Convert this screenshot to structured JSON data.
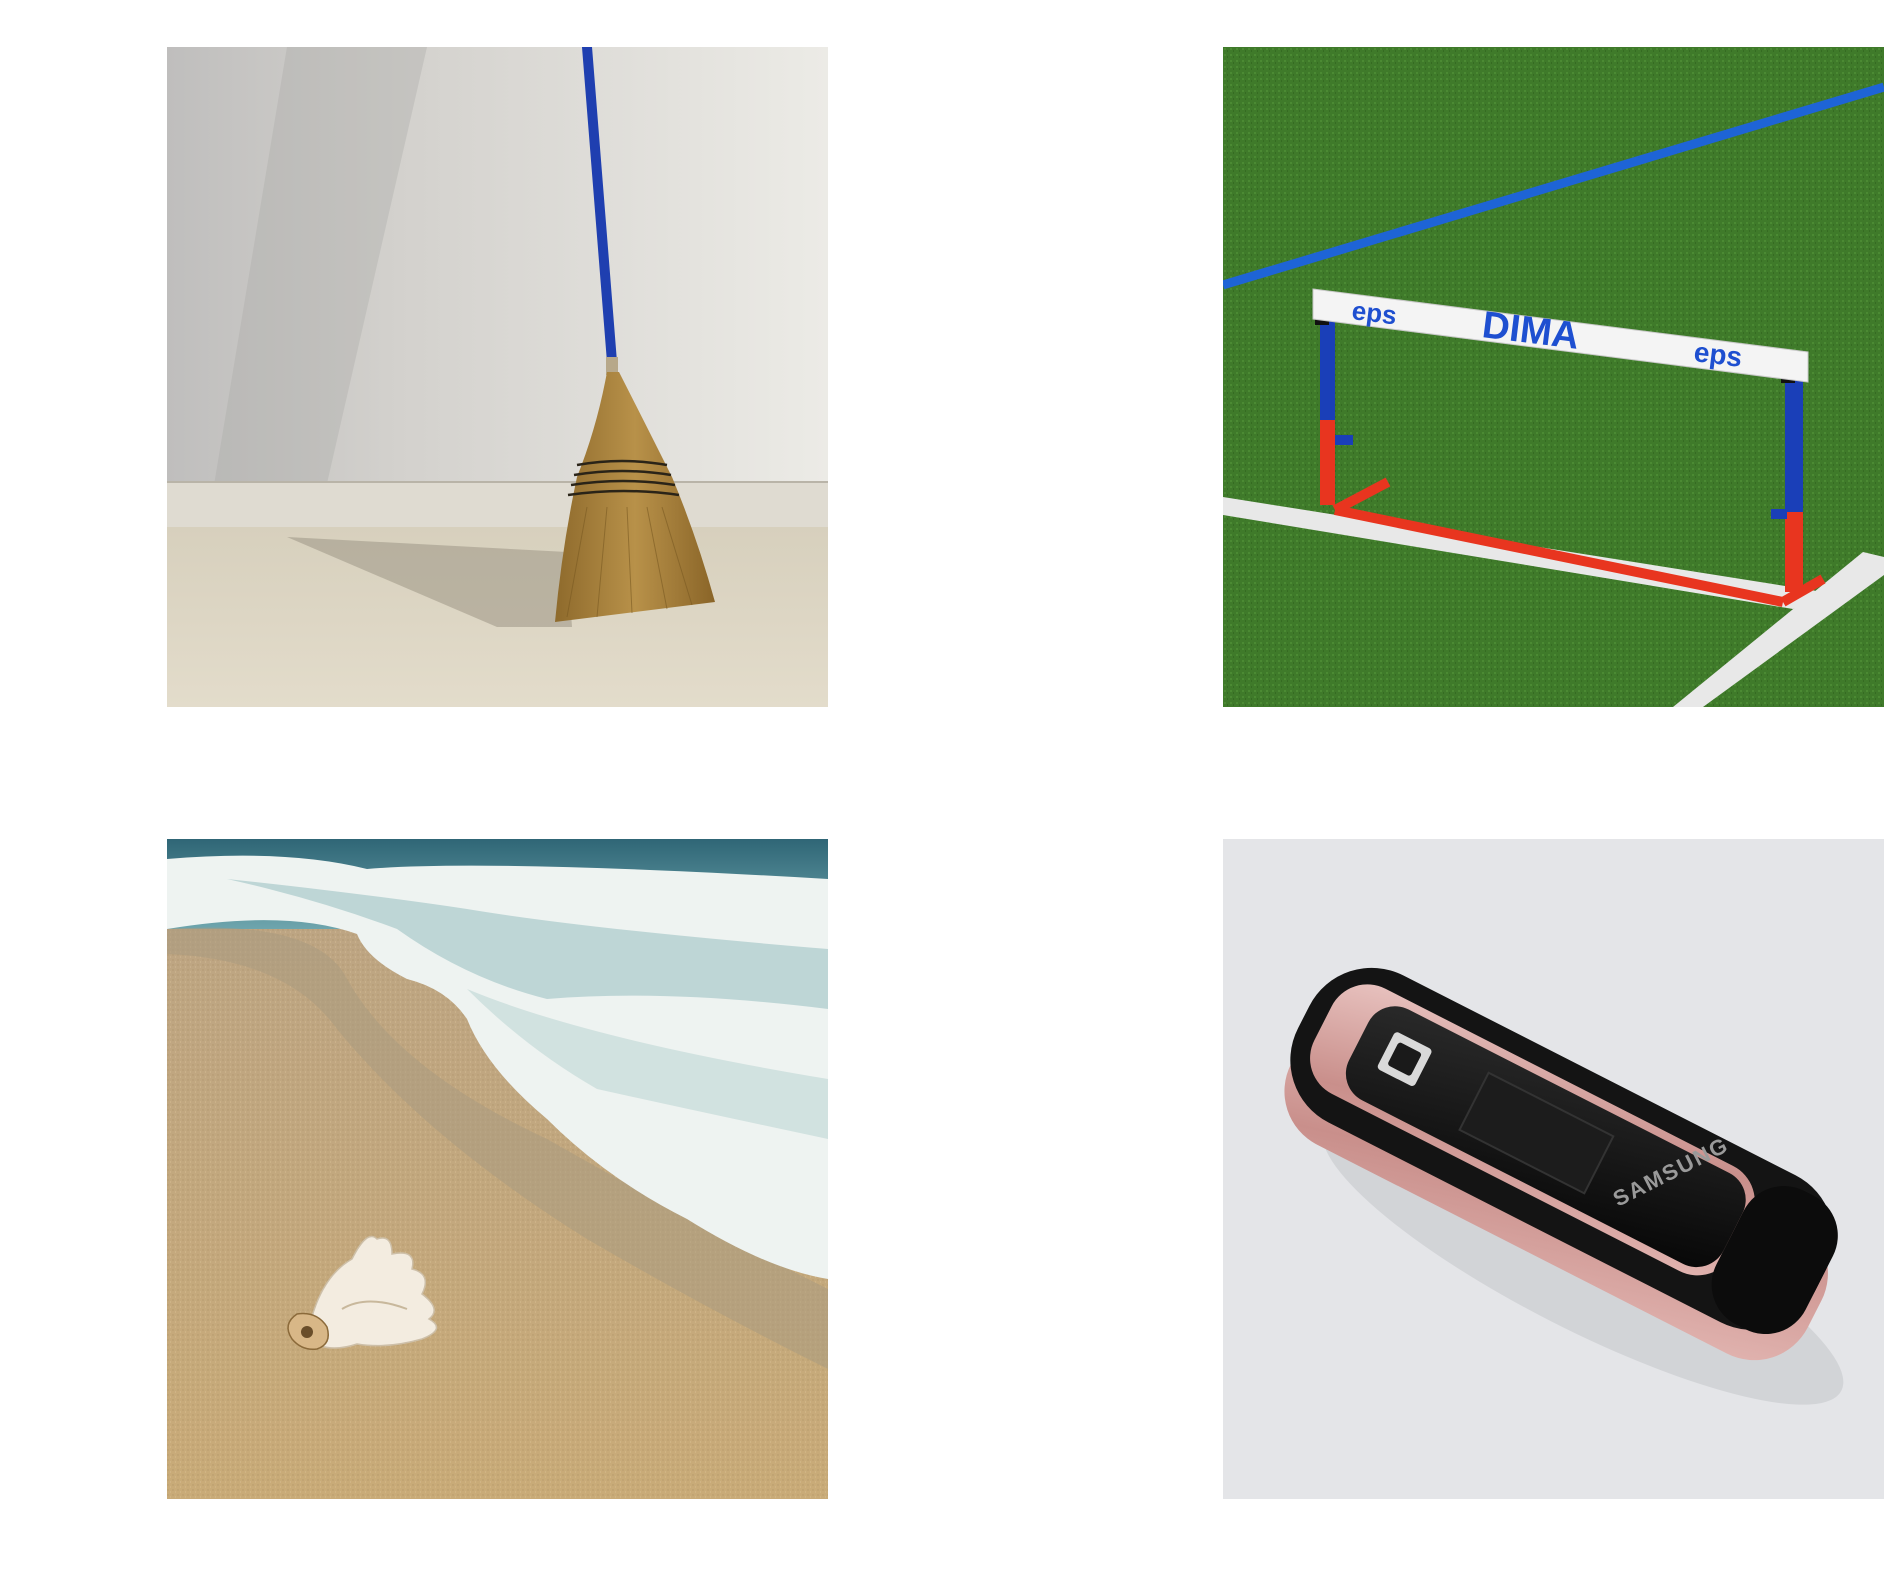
{
  "images": [
    {
      "name": "broom",
      "colors": {
        "wall": "#d8d5cf",
        "floor": "#d9d2bf",
        "handle": "#1f3fb0",
        "bristles": "#a9833f"
      }
    },
    {
      "name": "hurdle",
      "colors": {
        "grass": "#3f7a2a",
        "line": "#e6e6e6",
        "lane": "#1e64d6",
        "bar": "#f4f4f4",
        "post_blue": "#1a3fb8",
        "post_red": "#e8351f"
      },
      "bar_text": {
        "left": "eps",
        "center": "DIMA",
        "right": "eps"
      }
    },
    {
      "name": "beach-shell",
      "colors": {
        "sea": "#3f7f8c",
        "foam": "#f2f4f2",
        "sand": "#c8ad7f",
        "shell": "#f3ece0"
      }
    },
    {
      "name": "flip-phone",
      "colors": {
        "background": "#e4e5e8",
        "body": "#141414",
        "trim": "#d9a9a6"
      },
      "brand_text": "SAMSUNG"
    }
  ]
}
